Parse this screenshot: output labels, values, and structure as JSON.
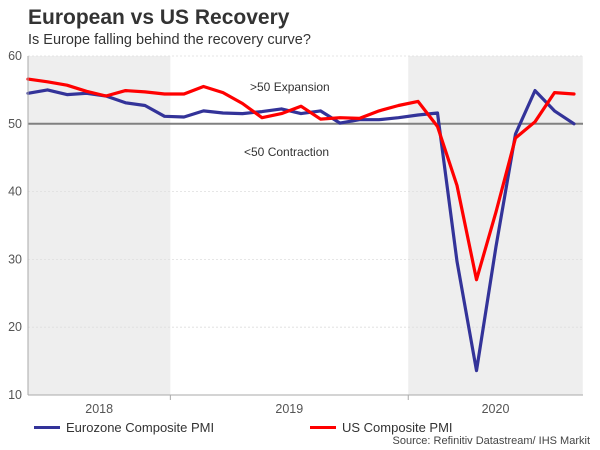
{
  "header": {
    "title": "European vs US Recovery",
    "subtitle": "Is Europe falling behind the recovery curve?"
  },
  "source": "Source: Refinitiv Datastream/ IHS Markit",
  "chart_data": {
    "type": "line",
    "title": "European vs US Recovery",
    "subtitle": "Is Europe falling behind the recovery curve?",
    "xlabel": "",
    "ylabel": "",
    "ylim": [
      10,
      60
    ],
    "yticks": [
      "10",
      "20",
      "30",
      "40",
      "50",
      "60"
    ],
    "year_bands": [
      {
        "label": "2018",
        "start_index": 0,
        "end_index": 7.3,
        "shaded": true
      },
      {
        "label": "2019",
        "start_index": 7.3,
        "end_index": 19.5,
        "shaded": false
      },
      {
        "label": "2020",
        "start_index": 19.5,
        "end_index": 28.45,
        "shaded": true
      }
    ],
    "reference_line": 50,
    "annotations": [
      ">50 Expansion",
      "<50 Contraction"
    ],
    "grid": true,
    "legend_position": "bottom",
    "series": [
      {
        "name": "Eurozone Composite PMI",
        "color": "#333399",
        "values": [
          54.5,
          55.0,
          54.3,
          54.5,
          54.1,
          53.1,
          52.7,
          51.1,
          51.0,
          51.9,
          51.6,
          51.5,
          51.8,
          52.2,
          51.5,
          51.9,
          50.1,
          50.6,
          50.6,
          50.9,
          51.3,
          51.6,
          29.7,
          13.6,
          31.9,
          48.5,
          54.9,
          51.9,
          50.0
        ]
      },
      {
        "name": "US Composite PMI",
        "color": "#ff0000",
        "values": [
          56.6,
          56.2,
          55.7,
          54.8,
          54.1,
          54.9,
          54.7,
          54.4,
          54.4,
          55.5,
          54.6,
          53.0,
          50.9,
          51.5,
          52.6,
          50.7,
          50.9,
          50.8,
          51.9,
          52.7,
          53.3,
          49.6,
          40.9,
          27.0,
          37.0,
          47.9,
          50.3,
          54.6,
          54.4
        ]
      }
    ]
  }
}
